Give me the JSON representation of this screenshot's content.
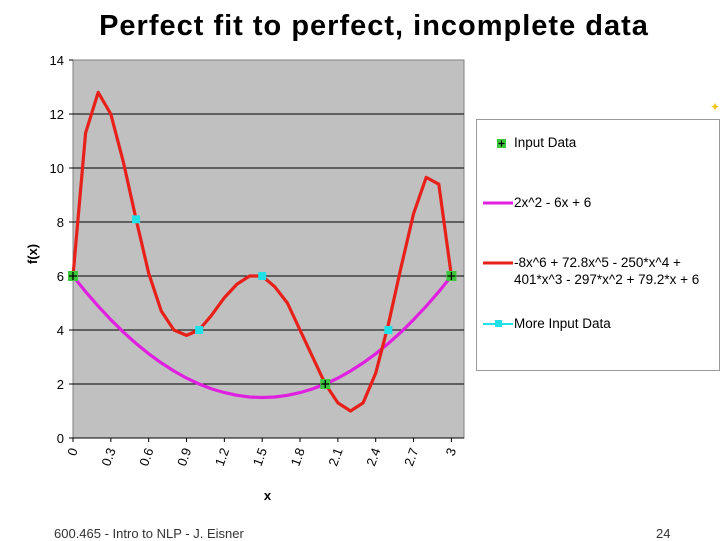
{
  "title": "Perfect fit to perfect, incomplete data",
  "footer": {
    "course": "600.465 - Intro to NLP - J. Eisner",
    "page": "24"
  },
  "chart_data": {
    "type": "line",
    "xlabel": "x",
    "ylabel": "f(x)",
    "xlim": [
      0,
      3.1
    ],
    "ylim": [
      0,
      14
    ],
    "x_ticks": [
      "0",
      "0.3",
      "0.6",
      "0.9",
      "1.2",
      "1.5",
      "1.8",
      "2.1",
      "2.4",
      "2.7",
      "3"
    ],
    "y_ticks": [
      "0",
      "2",
      "4",
      "6",
      "8",
      "10",
      "12",
      "14"
    ],
    "grid": "horizontal",
    "plot_background": "#c0c0c0",
    "legend_placement": "right",
    "series": [
      {
        "name": "2x^2 - 6x + 6",
        "kind": "line",
        "color": "#e020e0",
        "x": [
          0,
          0.1,
          0.2,
          0.3,
          0.4,
          0.5,
          0.6,
          0.7,
          0.8,
          0.9,
          1.0,
          1.1,
          1.2,
          1.3,
          1.4,
          1.5,
          1.6,
          1.7,
          1.8,
          1.9,
          2.0,
          2.1,
          2.2,
          2.3,
          2.4,
          2.5,
          2.6,
          2.7,
          2.8,
          2.9,
          3.0
        ],
        "y": [
          6,
          5.42,
          4.88,
          4.38,
          3.92,
          3.5,
          3.12,
          2.78,
          2.48,
          2.22,
          2.0,
          1.82,
          1.68,
          1.58,
          1.52,
          1.5,
          1.52,
          1.58,
          1.68,
          1.82,
          2.0,
          2.22,
          2.48,
          2.78,
          3.12,
          3.5,
          3.92,
          4.38,
          4.88,
          5.42,
          6.0
        ]
      },
      {
        "name": "-8x^6 + 72.8x^5 - 250*x^4 + 401*x^3 - 297*x^2 + 79.2*x + 6",
        "kind": "line",
        "color": "#e8201a",
        "x": [
          0,
          0.1,
          0.2,
          0.3,
          0.4,
          0.5,
          0.6,
          0.7,
          0.8,
          0.9,
          1.0,
          1.1,
          1.2,
          1.3,
          1.4,
          1.5,
          1.6,
          1.7,
          1.8,
          1.9,
          2.0,
          2.1,
          2.2,
          2.3,
          2.4,
          2.5,
          2.6,
          2.7,
          2.8,
          2.9,
          3.0
        ],
        "y": [
          6,
          11.3,
          12.8,
          12.0,
          10.2,
          8.1,
          6.1,
          4.7,
          4.0,
          3.8,
          4.0,
          4.55,
          5.2,
          5.7,
          6.0,
          6.0,
          5.6,
          5.0,
          4.0,
          3.0,
          2.0,
          1.3,
          1.0,
          1.3,
          2.4,
          4.2,
          6.3,
          8.3,
          9.65,
          9.4,
          6.0
        ]
      },
      {
        "name": "Input Data",
        "kind": "markers",
        "color": "#3cc83c",
        "x": [
          0,
          2,
          3
        ],
        "y": [
          6,
          2,
          6
        ]
      },
      {
        "name": "More Input Data",
        "kind": "markers",
        "color": "#20e0e8",
        "x": [
          0.5,
          1,
          1.5,
          2.5
        ],
        "y": [
          8.1,
          4.0,
          6.0,
          4.0
        ]
      }
    ],
    "legend": [
      "Input Data",
      "2x^2 - 6x + 6",
      "-8x^6 + 72.8x^5 - 250*x^4 + 401*x^3 - 297*x^2 + 79.2*x + 6",
      "More Input Data"
    ]
  }
}
